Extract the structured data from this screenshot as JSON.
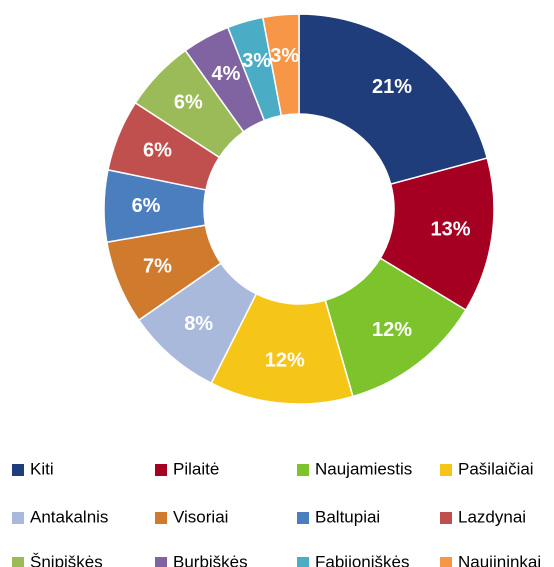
{
  "chart_data": {
    "type": "donut",
    "categories": [
      "Kiti",
      "Pilaitė",
      "Naujamiestis",
      "Pašilaičiai",
      "Antakalnis",
      "Visoriai",
      "Baltupiai",
      "Lazdynai",
      "Šnipiškės",
      "Burbiškės",
      "Fabijoniškės",
      "Naujininkai"
    ],
    "values": [
      21,
      13,
      12,
      12,
      8,
      7,
      6,
      6,
      6,
      4,
      3,
      3
    ],
    "value_labels": [
      "21%",
      "13%",
      "12%",
      "12%",
      "8%",
      "7%",
      "6%",
      "6%",
      "6%",
      "4%",
      "3%",
      "3%"
    ],
    "colors": [
      "#1f3d7a",
      "#a50021",
      "#7dc42c",
      "#f5c518",
      "#a9b9dc",
      "#d07a2e",
      "#4a7ebf",
      "#c0504d",
      "#9bbb59",
      "#8064a2",
      "#4bacc6",
      "#f79646"
    ],
    "legend": "bottom"
  }
}
